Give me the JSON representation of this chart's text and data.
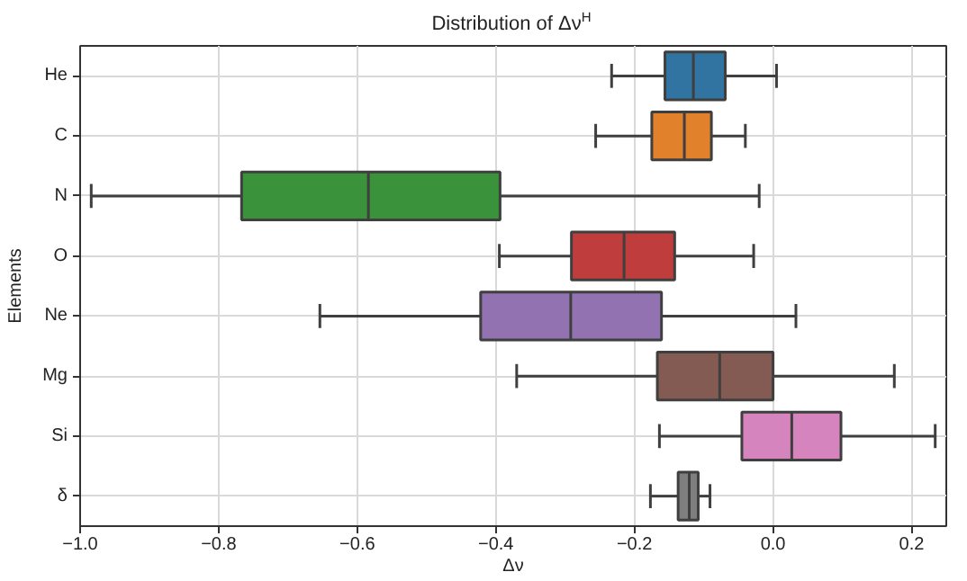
{
  "chart_data": {
    "type": "box",
    "orientation": "horizontal",
    "title": "Distribution of Δν$^{H}$",
    "xlabel": "Δν",
    "ylabel": "Elements",
    "categories": [
      "He",
      "C",
      "N",
      "O",
      "Ne",
      "Mg",
      "Si",
      "δ"
    ],
    "colors": [
      "#3274a1",
      "#e1812c",
      "#3a923a",
      "#c03d3e",
      "#9372b2",
      "#845b53",
      "#d684bd",
      "#7f7f7f"
    ],
    "boxes": [
      {
        "low": -0.233,
        "q1": -0.156,
        "median": -0.115,
        "q3": -0.069,
        "high": 0.005
      },
      {
        "low": -0.256,
        "q1": -0.175,
        "median": -0.128,
        "q3": -0.089,
        "high": -0.04
      },
      {
        "low": -0.984,
        "q1": -0.767,
        "median": -0.584,
        "q3": -0.394,
        "high": -0.02
      },
      {
        "low": -0.395,
        "q1": -0.291,
        "median": -0.215,
        "q3": -0.142,
        "high": -0.028
      },
      {
        "low": -0.654,
        "q1": -0.422,
        "median": -0.292,
        "q3": -0.161,
        "high": 0.033
      },
      {
        "low": -0.37,
        "q1": -0.167,
        "median": -0.077,
        "q3": 0.0,
        "high": 0.175
      },
      {
        "low": -0.164,
        "q1": -0.045,
        "median": 0.027,
        "q3": 0.098,
        "high": 0.234
      },
      {
        "low": -0.177,
        "q1": -0.137,
        "median": -0.121,
        "q3": -0.108,
        "high": -0.091
      }
    ],
    "xlim": [
      -1.0,
      0.25
    ],
    "xticks": [
      {
        "value": -1.0,
        "label": "−1.0"
      },
      {
        "value": -0.8,
        "label": "−0.8"
      },
      {
        "value": -0.6,
        "label": "−0.6"
      },
      {
        "value": -0.4,
        "label": "−0.4"
      },
      {
        "value": -0.2,
        "label": "−0.2"
      },
      {
        "value": 0,
        "label": "0.0"
      },
      {
        "value": 0.2,
        "label": "0.2"
      }
    ],
    "grid": true
  }
}
